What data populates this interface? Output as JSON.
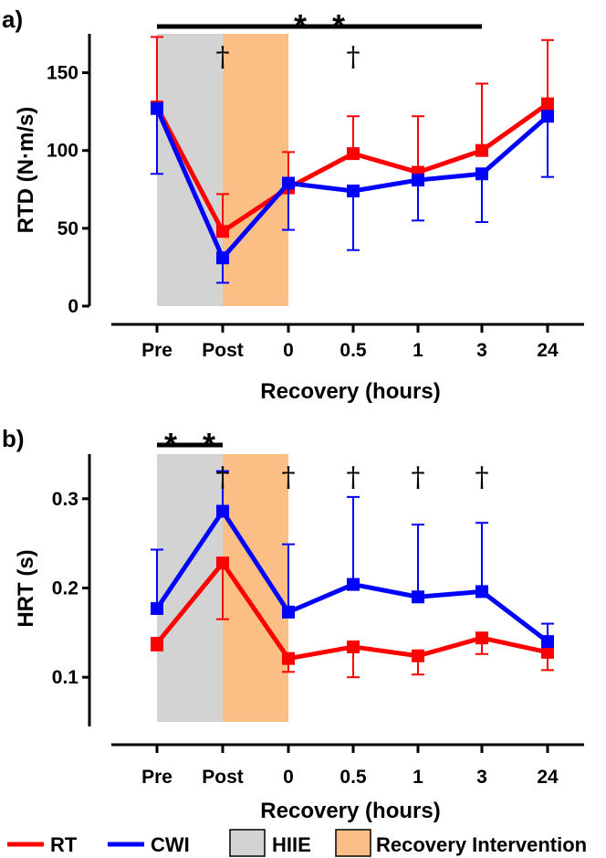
{
  "colors": {
    "rt": "#ff0000",
    "cwi": "#0000ff",
    "hiie": "#d3d3d3",
    "recovery": "#fbbf86",
    "axis": "#000000"
  },
  "legend": [
    {
      "key": "rt",
      "label": "RT",
      "type": "line"
    },
    {
      "key": "cwi",
      "label": "CWI",
      "type": "line"
    },
    {
      "key": "hiie",
      "label": "HIIE",
      "type": "box"
    },
    {
      "key": "recovery",
      "label": "Recovery Intervention",
      "type": "box"
    }
  ],
  "chart_data": [
    {
      "panel": "a)",
      "type": "line",
      "ylabel": "RTD (N·m/s)",
      "xlabel": "Recovery (hours)",
      "categories": [
        "Pre",
        "Post",
        "0",
        "0.5",
        "1",
        "3",
        "24"
      ],
      "ylim": [
        0,
        175
      ],
      "yticks": [
        0,
        50,
        100,
        150
      ],
      "shaded_regions": [
        {
          "key": "hiie",
          "from": "Pre",
          "to": "Post"
        },
        {
          "key": "recovery",
          "from": "Post",
          "to": "0"
        }
      ],
      "series": [
        {
          "name": "RT",
          "key": "rt",
          "values": [
            128,
            48,
            76,
            98,
            86,
            100,
            130
          ],
          "err_up": [
            45,
            24,
            23,
            24,
            36,
            43,
            41
          ],
          "err_down": [
            0,
            0,
            0,
            0,
            0,
            0,
            0
          ]
        },
        {
          "name": "CWI",
          "key": "cwi",
          "values": [
            127,
            31,
            79,
            74,
            81,
            85,
            122
          ],
          "err_up": [
            0,
            0,
            0,
            0,
            0,
            0,
            0
          ],
          "err_down": [
            42,
            16,
            30,
            38,
            26,
            31,
            39
          ]
        }
      ],
      "significance_bar": {
        "from": "Pre",
        "to": "3",
        "stars": [
          "rt",
          "cwi"
        ],
        "star_symbol": "*"
      },
      "daggers": [
        {
          "at": "Post",
          "symbol": "†"
        },
        {
          "at": "0.5",
          "symbol": "†"
        }
      ]
    },
    {
      "panel": "b)",
      "type": "line",
      "ylabel": "HRT (s)",
      "xlabel": "Recovery (hours)",
      "categories": [
        "Pre",
        "Post",
        "0",
        "0.5",
        "1",
        "3",
        "24"
      ],
      "ylim": [
        0.05,
        0.35
      ],
      "yticks": [
        0.1,
        0.2,
        0.3
      ],
      "ytick_labels": [
        "0.1",
        "0.2",
        "0.3"
      ],
      "shaded_regions": [
        {
          "key": "hiie",
          "from": "Pre",
          "to": "Post"
        },
        {
          "key": "recovery",
          "from": "Post",
          "to": "0"
        }
      ],
      "series": [
        {
          "name": "RT",
          "key": "rt",
          "values": [
            0.138,
            0.228,
            0.121,
            0.134,
            0.124,
            0.144,
            0.128
          ],
          "err_up": [
            0,
            0,
            0,
            0,
            0,
            0,
            0
          ],
          "err_down": [
            0.008,
            0.063,
            0.015,
            0.034,
            0.021,
            0.018,
            0.02
          ]
        },
        {
          "name": "CWI",
          "key": "cwi",
          "values": [
            0.177,
            0.286,
            0.173,
            0.204,
            0.19,
            0.196,
            0.14
          ],
          "err_up": [
            0.066,
            0.045,
            0.076,
            0.098,
            0.081,
            0.077,
            0.02
          ],
          "err_down": [
            0,
            0,
            0,
            0,
            0,
            0,
            0
          ]
        }
      ],
      "significance_bar": {
        "from": "Pre",
        "to": "Post",
        "stars": [
          "rt",
          "cwi"
        ],
        "star_symbol": "*"
      },
      "daggers": [
        {
          "at": "Post",
          "symbol": "†"
        },
        {
          "at": "0",
          "symbol": "†"
        },
        {
          "at": "0.5",
          "symbol": "†"
        },
        {
          "at": "1",
          "symbol": "†"
        },
        {
          "at": "3",
          "symbol": "†"
        }
      ]
    }
  ]
}
